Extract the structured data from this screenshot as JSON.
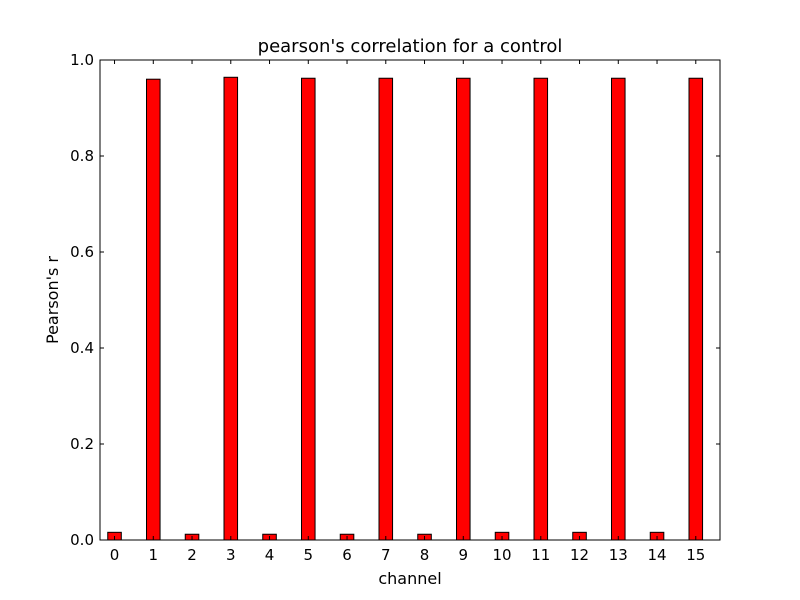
{
  "chart_data": {
    "type": "bar",
    "title": "pearson's correlation for a control",
    "xlabel": "channel",
    "ylabel": "Pearson's r",
    "categories": [
      "0",
      "1",
      "2",
      "3",
      "4",
      "5",
      "6",
      "7",
      "8",
      "9",
      "10",
      "11",
      "12",
      "13",
      "14",
      "15"
    ],
    "values": [
      0.016,
      0.96,
      0.012,
      0.964,
      0.012,
      0.962,
      0.012,
      0.962,
      0.012,
      0.962,
      0.016,
      0.962,
      0.016,
      0.962,
      0.016,
      0.962
    ],
    "ylim": [
      0,
      1.0
    ],
    "yticks": [
      "0.0",
      "0.2",
      "0.4",
      "0.6",
      "0.8",
      "1.0"
    ],
    "bar_color": "#ff0000",
    "edge_color": "#000000",
    "grid": false
  }
}
